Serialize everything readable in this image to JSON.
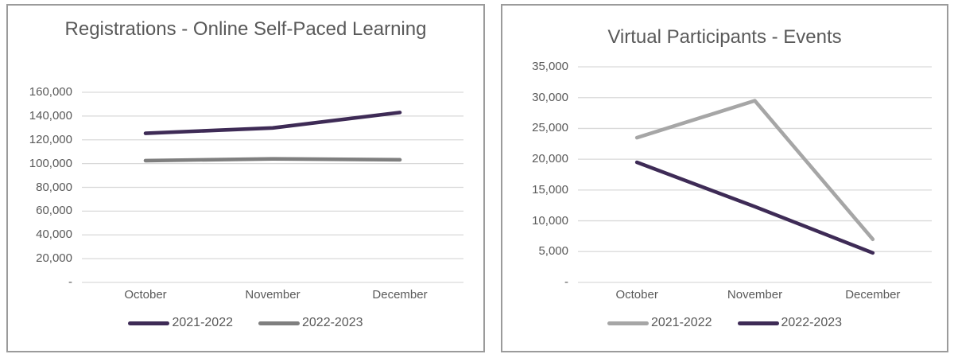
{
  "colors": {
    "accent_purple": "#3e2b56",
    "gray_dark": "#7f7f7f",
    "gray_light": "#a6a6a6",
    "gridline": "#d9d9d9",
    "axis_text": "#595959",
    "title_text": "#595959",
    "panel_border": "#9b9b9b"
  },
  "chart_data": [
    {
      "id": "registrations-online-self-paced-learning",
      "type": "line",
      "title": "Registrations - Online Self-Paced Learning",
      "categories": [
        "October",
        "November",
        "December"
      ],
      "y_ticks_top_to_bottom": [
        "160,000",
        "140,000",
        "120,000",
        "100,000",
        "80,000",
        "60,000",
        "40,000",
        "20,000",
        "-"
      ],
      "ylim": [
        0,
        160000
      ],
      "y_step": 20000,
      "grid": true,
      "legend_position": "bottom",
      "series": [
        {
          "name": "2021-2022",
          "color": "#3e2b56",
          "values": [
            125500,
            130000,
            143000
          ]
        },
        {
          "name": "2022-2023",
          "color": "#7f7f7f",
          "values": [
            102500,
            104000,
            103200
          ]
        }
      ]
    },
    {
      "id": "virtual-participants-events",
      "type": "line",
      "title": "Virtual Participants - Events",
      "categories": [
        "October",
        "November",
        "December"
      ],
      "y_ticks_top_to_bottom": [
        "35,000",
        "30,000",
        "25,000",
        "20,000",
        "15,000",
        "10,000",
        "5,000",
        "-"
      ],
      "ylim": [
        0,
        35000
      ],
      "y_step": 5000,
      "grid": true,
      "legend_position": "bottom",
      "series": [
        {
          "name": "2021-2022",
          "color": "#a6a6a6",
          "values": [
            23500,
            29500,
            7000
          ]
        },
        {
          "name": "2022-2023",
          "color": "#3e2b56",
          "values": [
            19500,
            12300,
            4800
          ]
        }
      ]
    }
  ]
}
